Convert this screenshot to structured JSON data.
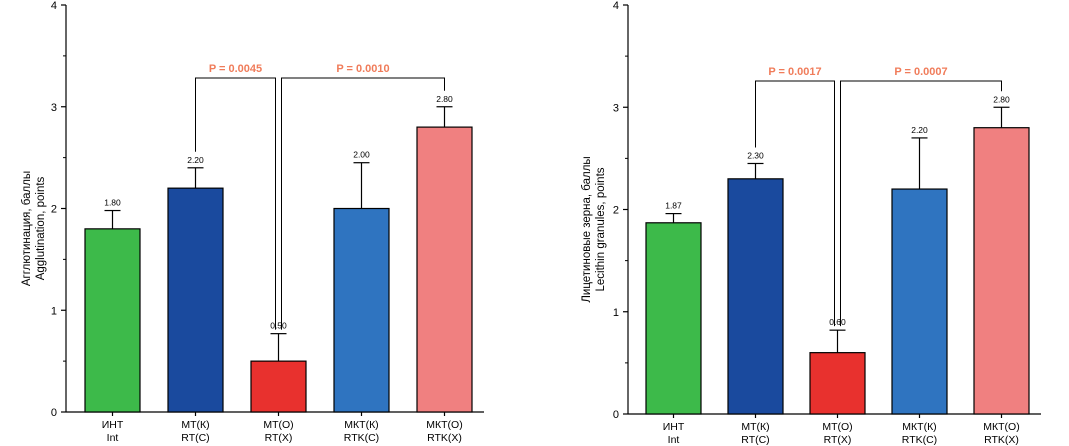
{
  "chart_data": [
    {
      "type": "bar",
      "ylabel_ru": "Агглютинация, баллы",
      "ylabel_en": "Agglutination, points",
      "ylim": [
        0,
        4
      ],
      "yticks": [
        "0",
        "1",
        "2",
        "3",
        "4"
      ],
      "categories": [
        {
          "ru": "ИНТ",
          "en": "Int"
        },
        {
          "ru": "МТ(К)",
          "en": "RT(C)"
        },
        {
          "ru": "МТ(О)",
          "en": "RT(X)"
        },
        {
          "ru": "МКТ(К)",
          "en": "RTK(C)"
        },
        {
          "ru": "МКТ(О)",
          "en": "RTK(X)"
        }
      ],
      "values": [
        1.8,
        2.2,
        0.5,
        2.0,
        2.8
      ],
      "errors": [
        0.18,
        0.2,
        0.27,
        0.45,
        0.2
      ],
      "value_labels": [
        "1.80",
        "2.20",
        "0.50",
        "2.00",
        "2.80"
      ],
      "colors": [
        "#3dba4a",
        "#1a4a9e",
        "#e8312e",
        "#2f74c0",
        "#f08080"
      ],
      "comparisons": [
        {
          "from": 1,
          "to": 2,
          "label": "P = 0.0045"
        },
        {
          "from": 2,
          "to": 4,
          "label": "P = 0.0010"
        }
      ]
    },
    {
      "type": "bar",
      "ylabel_ru": "Лицетиновые зерна, баллы",
      "ylabel_en": "Lecithin granules, points",
      "ylim": [
        0,
        4
      ],
      "yticks": [
        "0",
        "1",
        "2",
        "3",
        "4"
      ],
      "categories": [
        {
          "ru": "ИНТ",
          "en": "Int"
        },
        {
          "ru": "МТ(К)",
          "en": "RT(C)"
        },
        {
          "ru": "МТ(О)",
          "en": "RT(X)"
        },
        {
          "ru": "МКТ(К)",
          "en": "RTK(C)"
        },
        {
          "ru": "МКТ(О)",
          "en": "RTK(X)"
        }
      ],
      "values": [
        1.87,
        2.3,
        0.6,
        2.2,
        2.8
      ],
      "errors": [
        0.09,
        0.15,
        0.22,
        0.5,
        0.2
      ],
      "value_labels": [
        "1.87",
        "2.30",
        "0.60",
        "2.20",
        "2.80"
      ],
      "colors": [
        "#3dba4a",
        "#1a4a9e",
        "#e8312e",
        "#2f74c0",
        "#f08080"
      ],
      "comparisons": [
        {
          "from": 1,
          "to": 2,
          "label": "P = 0.0017"
        },
        {
          "from": 2,
          "to": 4,
          "label": "P = 0.0007"
        }
      ]
    }
  ]
}
